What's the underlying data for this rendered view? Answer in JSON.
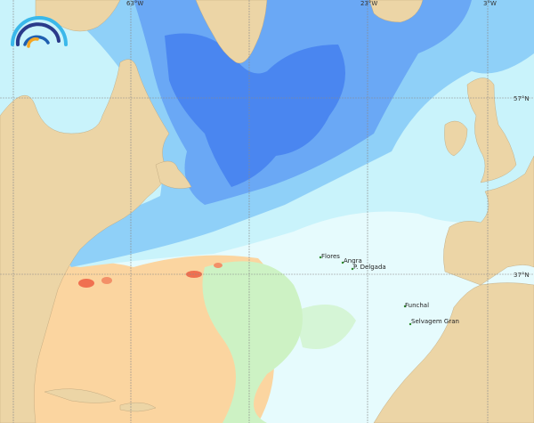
{
  "map": {
    "colors": {
      "land": "#ecd5a6",
      "deep_blue": "#4a86f0",
      "mid_blue": "#6aa8f5",
      "light_blue": "#8fd0f8",
      "pale_cyan": "#c9f3fb",
      "very_pale": "#e6fbfd",
      "pale_green": "#cdf2c4",
      "orange": "#fbd5a0",
      "red": "#f07050",
      "grid": "#8a8a8a"
    },
    "grid_labels": {
      "lon": [
        "63°W",
        "23°W",
        "3°W"
      ],
      "lat": [
        "57°N",
        "37°N"
      ]
    },
    "places": [
      {
        "name": "Flores"
      },
      {
        "name": "Angra"
      },
      {
        "name": "P. Delgada"
      },
      {
        "name": "Funchal"
      },
      {
        "name": "Selvagem Gran"
      }
    ],
    "logo_icon": "wave-arcs-logo"
  }
}
